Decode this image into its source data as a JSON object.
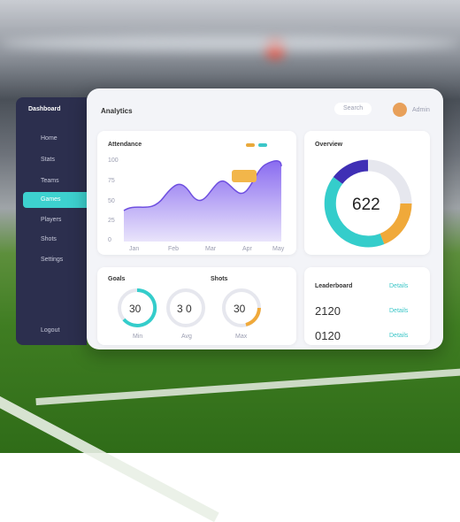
{
  "sidebar": {
    "logo": "Dashboard",
    "items": [
      "Home",
      "Stats",
      "Teams",
      "Games",
      "Players",
      "Shots",
      "Settings"
    ],
    "footer": "Logout"
  },
  "header": {
    "title": "Analytics",
    "search": "Search",
    "user": "Admin"
  },
  "activity": {
    "title": "Attendance",
    "y_labels": [
      "100",
      "75",
      "50",
      "25",
      "0"
    ],
    "x_labels": [
      "Jan",
      "Feb",
      "Mar",
      "Apr",
      "May"
    ]
  },
  "donut": {
    "title": "Overview",
    "value": "622"
  },
  "stats": [
    {
      "title": "Goals",
      "value": "30",
      "secondary": "3 0",
      "label": "Min",
      "label2": "Avg"
    },
    {
      "title": "Shots",
      "value": "30",
      "label": "Max"
    }
  ],
  "leaderboard": {
    "title": "Leaderboard",
    "link": "Details",
    "rows": [
      {
        "value": "2120",
        "link": "Details"
      },
      {
        "value": "0120",
        "link": "Details"
      }
    ]
  }
}
